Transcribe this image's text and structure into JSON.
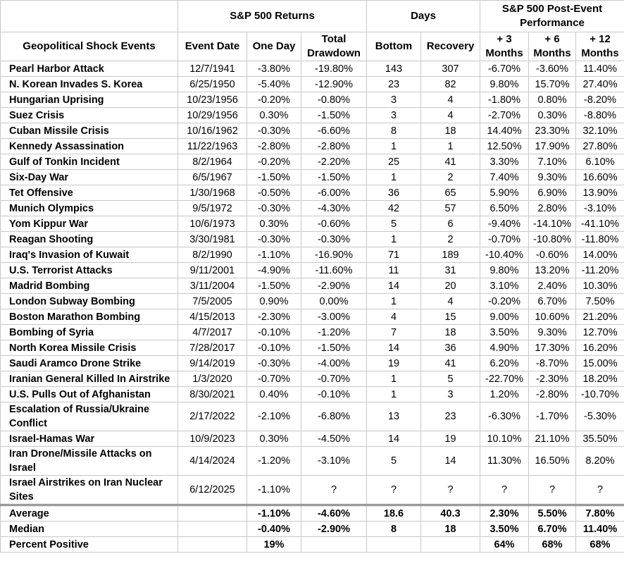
{
  "header": {
    "groups": [
      "S&P 500 Returns",
      "Days",
      "S&P 500 Post-Event Performance"
    ],
    "columns": [
      "Geopolitical Shock Events",
      "Event Date",
      "One Day",
      "Total Drawdown",
      "Bottom",
      "Recovery",
      "+ 3 Months",
      "+ 6 Months",
      "+ 12 Months"
    ]
  },
  "rows": [
    [
      "Pearl Harbor Attack",
      "12/7/1941",
      "-3.80%",
      "-19.80%",
      143,
      307,
      "-6.70%",
      "-3.60%",
      "11.40%"
    ],
    [
      "N. Korean Invades S. Korea",
      "6/25/1950",
      "-5.40%",
      "-12.90%",
      23,
      82,
      "9.80%",
      "15.70%",
      "27.40%"
    ],
    [
      "Hungarian Uprising",
      "10/23/1956",
      "-0.20%",
      "-0.80%",
      3,
      4,
      "-1.80%",
      "0.80%",
      "-8.20%"
    ],
    [
      "Suez Crisis",
      "10/29/1956",
      "0.30%",
      "-1.50%",
      3,
      4,
      "-2.70%",
      "0.30%",
      "-8.80%"
    ],
    [
      "Cuban Missile Crisis",
      "10/16/1962",
      "-0.30%",
      "-6.60%",
      8,
      18,
      "14.40%",
      "23.30%",
      "32.10%"
    ],
    [
      "Kennedy Assassination",
      "11/22/1963",
      "-2.80%",
      "-2.80%",
      1,
      1,
      "12.50%",
      "17.90%",
      "27.80%"
    ],
    [
      "Gulf of Tonkin Incident",
      "8/2/1964",
      "-0.20%",
      "-2.20%",
      25,
      41,
      "3.30%",
      "7.10%",
      "6.10%"
    ],
    [
      "Six-Day War",
      "6/5/1967",
      "-1.50%",
      "-1.50%",
      1,
      2,
      "7.40%",
      "9.30%",
      "16.60%"
    ],
    [
      "Tet Offensive",
      "1/30/1968",
      "-0.50%",
      "-6.00%",
      36,
      65,
      "5.90%",
      "6.90%",
      "13.90%"
    ],
    [
      "Munich Olympics",
      "9/5/1972",
      "-0.30%",
      "-4.30%",
      42,
      57,
      "6.50%",
      "2.80%",
      "-3.10%"
    ],
    [
      "Yom Kippur War",
      "10/6/1973",
      "0.30%",
      "-0.60%",
      5,
      6,
      "-9.40%",
      "-14.10%",
      "-41.10%"
    ],
    [
      "Reagan Shooting",
      "3/30/1981",
      "-0.30%",
      "-0.30%",
      1,
      2,
      "-0.70%",
      "-10.80%",
      "-11.80%"
    ],
    [
      "Iraq's Invasion of Kuwait",
      "8/2/1990",
      "-1.10%",
      "-16.90%",
      71,
      189,
      "-10.40%",
      "-0.60%",
      "14.00%"
    ],
    [
      "U.S. Terrorist Attacks",
      "9/11/2001",
      "-4.90%",
      "-11.60%",
      11,
      31,
      "9.80%",
      "13.20%",
      "-11.20%"
    ],
    [
      "Madrid Bombing",
      "3/11/2004",
      "-1.50%",
      "-2.90%",
      14,
      20,
      "3.10%",
      "2.40%",
      "10.30%"
    ],
    [
      "London Subway Bombing",
      "7/5/2005",
      "0.90%",
      "0.00%",
      1,
      4,
      "-0.20%",
      "6.70%",
      "7.50%"
    ],
    [
      "Boston Marathon Bombing",
      "4/15/2013",
      "-2.30%",
      "-3.00%",
      4,
      15,
      "9.00%",
      "10.60%",
      "21.20%"
    ],
    [
      "Bombing of Syria",
      "4/7/2017",
      "-0.10%",
      "-1.20%",
      7,
      18,
      "3.50%",
      "9.30%",
      "12.70%"
    ],
    [
      "North Korea Missile Crisis",
      "7/28/2017",
      "-0.10%",
      "-1.50%",
      14,
      36,
      "4.90%",
      "17.30%",
      "16.20%"
    ],
    [
      "Saudi Aramco Drone Strike",
      "9/14/2019",
      "-0.30%",
      "-4.00%",
      19,
      41,
      "6.20%",
      "-8.70%",
      "15.00%"
    ],
    [
      "Iranian General Killed In Airstrike",
      "1/3/2020",
      "-0.70%",
      "-0.70%",
      1,
      5,
      "-22.70%",
      "-2.30%",
      "18.20%"
    ],
    [
      "U.S. Pulls Out of Afghanistan",
      "8/30/2021",
      "0.40%",
      "-0.10%",
      1,
      3,
      "1.20%",
      "-2.80%",
      "-10.70%"
    ],
    [
      "Escalation of Russia/Ukraine Conflict",
      "2/17/2022",
      "-2.10%",
      "-6.80%",
      13,
      23,
      "-6.30%",
      "-1.70%",
      "-5.30%"
    ],
    [
      "Israel-Hamas War",
      "10/9/2023",
      "0.30%",
      "-4.50%",
      14,
      19,
      "10.10%",
      "21.10%",
      "35.50%"
    ],
    [
      "Iran Drone/Missile Attacks on Israel",
      "4/14/2024",
      "-1.20%",
      "-3.10%",
      5,
      14,
      "11.30%",
      "16.50%",
      "8.20%"
    ],
    [
      "Israel Airstrikes on Iran Nuclear Sites",
      "6/12/2025",
      "-1.10%",
      "?",
      "?",
      "?",
      "?",
      "?",
      "?"
    ]
  ],
  "summary": [
    [
      "Average",
      null,
      "-1.10%",
      "-4.60%",
      18.6,
      40.3,
      "2.30%",
      "5.50%",
      "7.80%"
    ],
    [
      "Median",
      null,
      "-0.40%",
      "-2.90%",
      8,
      18,
      "3.50%",
      "6.70%",
      "11.40%"
    ],
    [
      "Percent Positive",
      null,
      "19%",
      null,
      null,
      null,
      "64%",
      "68%",
      "68%"
    ]
  ]
}
